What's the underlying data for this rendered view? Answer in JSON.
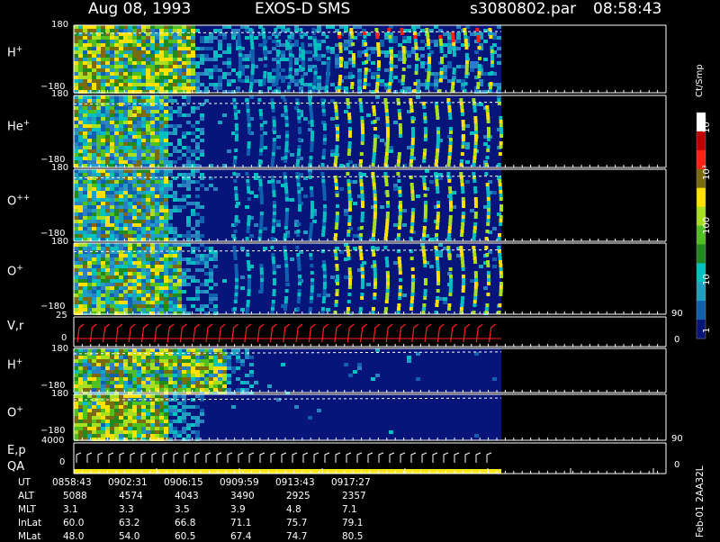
{
  "header": {
    "date": "Aug 08, 1993",
    "instrument": "EXOS-D SMS",
    "file": "s3080802.par",
    "time": "08:58:43"
  },
  "colors": {
    "panel_bg": "#07157a",
    "axis": "#ffffff",
    "dashed": "#ffffff",
    "vr_line": "#ff2020",
    "ep_line": "#ffffff",
    "qa_bar": "#ffe81a"
  },
  "colorbar": {
    "title": "Ct/Smp",
    "tick_labels": [
      "10⁴",
      "10³",
      "100",
      "10",
      "1"
    ],
    "stops": [
      "#ffffff",
      "#c00000",
      "#ff2010",
      "#7a6a10",
      "#ffe000",
      "#a8e020",
      "#50c020",
      "#208a20",
      "#00c0c0",
      "#20a0c0",
      "#1060b0",
      "#07157a"
    ]
  },
  "panels": [
    {
      "name": "H-plus-upper",
      "label": "H",
      "sup": "+",
      "ymax": "180",
      "ymin": "−180"
    },
    {
      "name": "He-plus",
      "label": "He",
      "sup": "+",
      "ymax": "180",
      "ymin": "−180"
    },
    {
      "name": "O-plus-plus",
      "label": "O",
      "sup": "++",
      "ymax": "180",
      "ymin": "−180"
    },
    {
      "name": "O-plus-upper",
      "label": "O",
      "sup": "+",
      "ymax": "180",
      "ymin": "−180"
    },
    {
      "name": "V-r",
      "label": "V,r",
      "sup": "",
      "ymax": "25",
      "ymin": "0",
      "right_max": "90",
      "right_min": "0"
    },
    {
      "name": "H-plus-lower",
      "label": "H",
      "sup": "+",
      "ymax": "180",
      "ymin": "−180"
    },
    {
      "name": "O-plus-lower",
      "label": "O",
      "sup": "+",
      "ymax": "180",
      "ymin": "−180"
    },
    {
      "name": "E-p-QA",
      "label": "E,p",
      "label2": "QA",
      "sup": "",
      "ymax": "4000",
      "ymin": "0",
      "right_max": "90",
      "right_min": "0"
    }
  ],
  "table": {
    "row_labels": [
      "UT",
      "ALT",
      "MLT",
      "InLat",
      "MLat"
    ],
    "columns": [
      [
        "0858:43",
        "5088",
        "3.1",
        "60.0",
        "48.0"
      ],
      [
        "0902:31",
        "4574",
        "3.3",
        "63.2",
        "54.0"
      ],
      [
        "0906:15",
        "4043",
        "3.5",
        "66.8",
        "60.5"
      ],
      [
        "0909:59",
        "3490",
        "3.9",
        "71.1",
        "67.4"
      ],
      [
        "0913:43",
        "2925",
        "4.8",
        "75.7",
        "74.7"
      ],
      [
        "0917:27",
        "2357",
        "7.1",
        "79.1",
        "80.5"
      ]
    ]
  },
  "footer_vertical": "Feb-01 2AA32L",
  "chart_data": {
    "type": "heatmap",
    "title": "Aug 08, 1993   EXOS-D SMS",
    "xlabel": "UT",
    "x_ticks": [
      "0858:43",
      "0902:31",
      "0906:15",
      "0909:59",
      "0913:43",
      "0917:27"
    ],
    "panels": [
      {
        "label": "H+",
        "ylim": [
          -180,
          180
        ]
      },
      {
        "label": "He+",
        "ylim": [
          -180,
          180
        ]
      },
      {
        "label": "O++",
        "ylim": [
          -180,
          180
        ]
      },
      {
        "label": "O+",
        "ylim": [
          -180,
          180
        ]
      },
      {
        "label": "V,r",
        "ylim": [
          0,
          25
        ],
        "right_ylim": [
          0,
          90
        ]
      },
      {
        "label": "H+",
        "ylim": [
          -180,
          180
        ]
      },
      {
        "label": "O+",
        "ylim": [
          -180,
          180
        ]
      },
      {
        "label": "E,p / QA",
        "ylim": [
          0,
          4000
        ],
        "right_ylim": [
          0,
          90
        ]
      }
    ],
    "colorbar": {
      "label": "Ct/Smp",
      "scale": "log",
      "range": [
        1,
        10000
      ],
      "ticks": [
        "1",
        "10",
        "100",
        "10^3",
        "10^4"
      ]
    }
  }
}
